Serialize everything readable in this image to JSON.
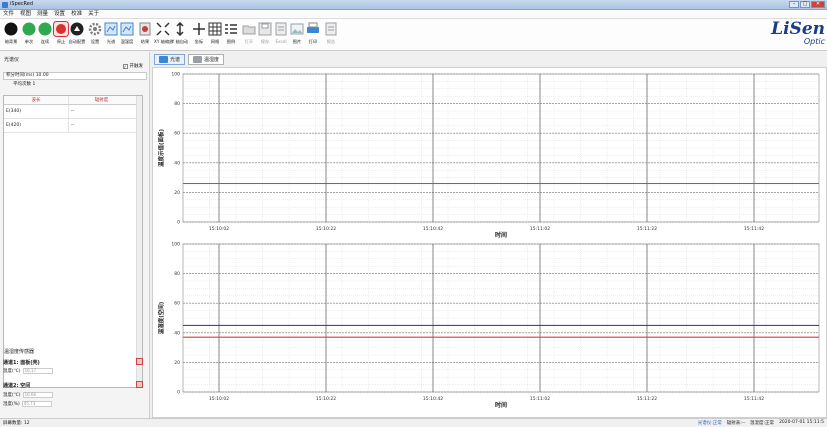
{
  "window": {
    "title": "iSpecRed"
  },
  "menu": [
    "文件",
    "视图",
    "测量",
    "设置",
    "校准",
    "关于"
  ],
  "toolbar": {
    "buttons": [
      {
        "label": "暗背景",
        "icon": "dark-background-icon",
        "color": "#111111"
      },
      {
        "label": "单次",
        "icon": "single-play-icon",
        "color": "#2fa84f"
      },
      {
        "label": "连续",
        "icon": "continuous-play-icon",
        "color": "#2fa84f"
      },
      {
        "label": "停止",
        "icon": "stop-icon",
        "color": "#d93030"
      },
      {
        "label": "自动配置",
        "icon": "auto-config-icon",
        "color": "#222222"
      },
      {
        "label": "设置",
        "icon": "settings-gear-icon",
        "color": "#7a7a7a"
      },
      {
        "label": "光谱",
        "icon": "spectrum-icon",
        "color": "#3b86d6"
      },
      {
        "label": "温湿度",
        "icon": "temperature-humidity-icon",
        "color": "#3b86d6"
      },
      {
        "label": "结果",
        "icon": "result-icon",
        "color": "#c04040"
      },
      {
        "label": "XY 轴缩放",
        "icon": "xy-zoom-icon",
        "color": "#333333"
      },
      {
        "label": "Y 轴自动",
        "icon": "y-auto-icon",
        "color": "#333333"
      },
      {
        "label": "坐标",
        "icon": "crosshair-icon",
        "color": "#333333"
      },
      {
        "label": "网格",
        "icon": "grid-icon",
        "color": "#333333"
      },
      {
        "label": "图例",
        "icon": "legend-icon",
        "color": "#333333"
      },
      {
        "label": "打开",
        "icon": "open-folder-icon",
        "color": "#9aa0a6",
        "disabled": true
      },
      {
        "label": "保存",
        "icon": "save-icon",
        "color": "#9aa0a6",
        "disabled": true
      },
      {
        "label": "Excel",
        "icon": "excel-icon",
        "color": "#9aa0a6",
        "disabled": true
      },
      {
        "label": "图片",
        "icon": "image-icon",
        "color": "#9aa0a6"
      },
      {
        "label": "打印",
        "icon": "print-icon",
        "color": "#3b86d6"
      },
      {
        "label": "报告",
        "icon": "report-icon",
        "color": "#9aa0a6",
        "disabled": true
      }
    ]
  },
  "logo": {
    "main": "LiSen",
    "sub": "Optic"
  },
  "left": {
    "section_title": "光谱仪",
    "toggle_label": "开触发",
    "integration": {
      "label": "积分时间(ms)",
      "value": "10.00"
    },
    "average": {
      "label": "平均次数",
      "value": "1"
    },
    "table": {
      "columns": [
        "波长",
        "辐射度"
      ],
      "rows": [
        {
          "name": "E(340)",
          "value": "--"
        },
        {
          "name": "E(420)",
          "value": "--"
        }
      ]
    },
    "sensor_title": "温湿度传感器",
    "channel1": {
      "title": "通道1: 面板(壳)",
      "temp_label": "温度(℃)",
      "temp_value": "16.17"
    },
    "channel2": {
      "title": "通道2: 空间",
      "temp_label": "温度(℃)",
      "temp_value": "16.66",
      "hum_label": "湿度(%)",
      "hum_value": "45.73"
    }
  },
  "tabs": [
    {
      "label": "光谱",
      "active": true
    },
    {
      "label": "温湿度",
      "active": false
    }
  ],
  "chart_data": [
    {
      "type": "line",
      "ylabel": "温度示值(面板)",
      "xlabel": "时间",
      "ylim": [
        0,
        100
      ],
      "yticks": [
        0,
        20,
        40,
        60,
        80,
        100
      ],
      "xticks": [
        "15:10:02",
        "15:10:22",
        "15:10:42",
        "15:11:02",
        "15:11:22",
        "15:11:42"
      ],
      "grid": true,
      "series": [
        {
          "color": "#e03c3c",
          "values": [
            26,
            26,
            26,
            26,
            26,
            26,
            26
          ]
        }
      ]
    },
    {
      "type": "line",
      "ylabel": "温湿度(空间)",
      "xlabel": "时间",
      "ylim": [
        0,
        100
      ],
      "yticks": [
        0,
        20,
        40,
        60,
        80,
        100
      ],
      "xticks": [
        "15:10:02",
        "15:10:22",
        "15:10:42",
        "15:11:02",
        "15:11:22",
        "15:11:42"
      ],
      "grid": true,
      "series": [
        {
          "color": "#3344cc",
          "values": [
            45,
            45,
            45,
            45,
            45,
            45,
            45
          ]
        },
        {
          "color": "#e03c3c",
          "values": [
            37,
            37,
            37,
            37,
            37,
            37,
            37
          ]
        }
      ]
    }
  ],
  "status": {
    "left": "屏幕数量: 12",
    "spectrometer": "光谱仪:正常",
    "radiometer": "辐射表:--",
    "thermo": "温湿度:正常",
    "datetime": "2020-07-01 15:11:5"
  }
}
